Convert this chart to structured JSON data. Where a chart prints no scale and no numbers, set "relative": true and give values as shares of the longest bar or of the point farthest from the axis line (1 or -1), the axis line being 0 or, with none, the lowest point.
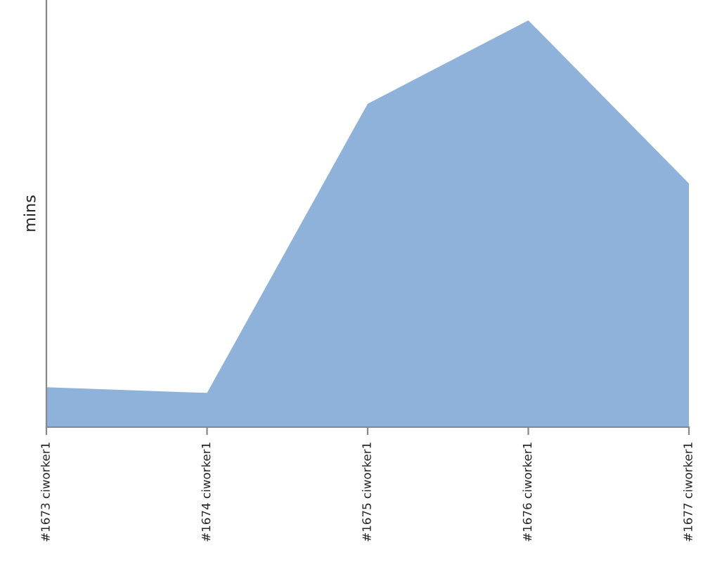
{
  "chart_data": {
    "type": "area",
    "ylabel": "mins",
    "relative": true,
    "categories": [
      "#1673 ciworker1",
      "#1674 ciworker1",
      "#1675 ciworker1",
      "#1676 ciworker1",
      "#1677 ciworker1"
    ],
    "series": [
      {
        "color": "#8fb2db",
        "values": [
          0.098,
          0.084,
          0.795,
          1,
          0.599
        ]
      }
    ],
    "grid": false,
    "legend": false
  }
}
